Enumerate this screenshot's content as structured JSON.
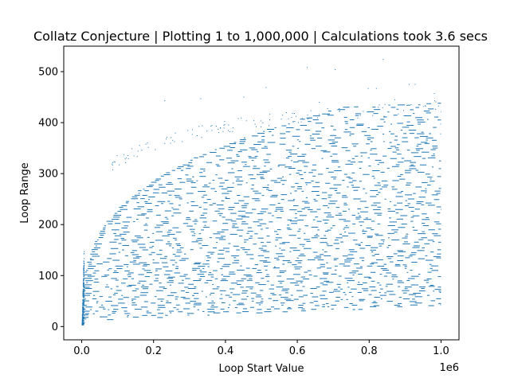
{
  "chart_data": {
    "type": "scatter",
    "title": "Collatz Conjecture | Plotting 1 to 1,000,000 | Calculations took 3.6 secs",
    "xlabel": "Loop Start Value",
    "ylabel": "Loop Range",
    "x_offset_text": "1e6",
    "xlim": [
      -0.05,
      1.05
    ],
    "ylim": [
      -26,
      550
    ],
    "xticks": [
      {
        "value": 0.0,
        "label": "0.0"
      },
      {
        "value": 0.2,
        "label": "0.2"
      },
      {
        "value": 0.4,
        "label": "0.4"
      },
      {
        "value": 0.6,
        "label": "0.6"
      },
      {
        "value": 0.8,
        "label": "0.8"
      },
      {
        "value": 1.0,
        "label": "1.0"
      }
    ],
    "yticks": [
      {
        "value": 0,
        "label": "0"
      },
      {
        "value": 100,
        "label": "100"
      },
      {
        "value": 200,
        "label": "200"
      },
      {
        "value": 300,
        "label": "300"
      },
      {
        "value": 400,
        "label": "400"
      },
      {
        "value": 500,
        "label": "500"
      }
    ],
    "grid": false,
    "legend": "none",
    "marker_color": "#1f77b4",
    "x_range_plotted": [
      1,
      1000000
    ],
    "envelope": {
      "x_scale": 1000000,
      "points": [
        [
          0.0,
          3
        ],
        [
          0.005,
          150
        ],
        [
          0.02,
          230
        ],
        [
          0.05,
          300
        ],
        [
          0.1,
          340
        ],
        [
          0.2,
          370
        ],
        [
          0.3,
          390
        ],
        [
          0.4,
          405
        ],
        [
          0.5,
          415
        ],
        [
          0.6,
          425
        ],
        [
          0.7,
          430
        ],
        [
          0.8,
          435
        ],
        [
          0.9,
          440
        ],
        [
          1.0,
          445
        ]
      ]
    },
    "outliers": [
      {
        "x": 0.837799,
        "y": 524
      },
      {
        "x": 0.626331,
        "y": 508
      },
      {
        "x": 0.704623,
        "y": 504
      },
      {
        "x": 0.910107,
        "y": 475
      },
      {
        "x": 0.927003,
        "y": 475
      },
      {
        "x": 0.511935,
        "y": 469
      },
      {
        "x": 0.796095,
        "y": 467
      },
      {
        "x": 0.818943,
        "y": 467
      },
      {
        "x": 0.980291,
        "y": 457
      },
      {
        "x": 0.45,
        "y": 450
      },
      {
        "x": 0.33,
        "y": 447
      },
      {
        "x": 0.23,
        "y": 443
      },
      {
        "x": 0.66,
        "y": 440
      },
      {
        "x": 0.87,
        "y": 445
      },
      {
        "x": 0.995,
        "y": 438
      }
    ]
  }
}
